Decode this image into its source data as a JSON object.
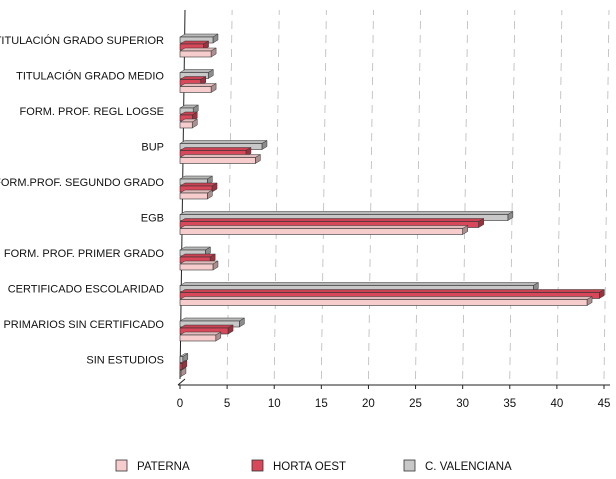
{
  "chart_data": {
    "type": "bar",
    "orientation": "horizontal",
    "categories": [
      "TITULACIÓN GRADO SUPERIOR",
      "TITULACIÓN GRADO MEDIO",
      "FORM. PROF. REGL LOGSE",
      "BUP",
      "FORM.PROF. SEGUNDO GRADO",
      "EGB",
      "FORM. PROF. PRIMER GRADO",
      "CERTIFICADO ESCOLARIDAD",
      "PRIMARIOS SIN CERTIFICADO",
      "SIN ESTUDIOS"
    ],
    "series": [
      {
        "name": "PATERNA",
        "color": "#f6cccc",
        "values": [
          3.3,
          3.3,
          1.3,
          8.0,
          2.9,
          30.0,
          3.5,
          43.2,
          3.8,
          0.1
        ]
      },
      {
        "name": "HORTA OEST",
        "color": "#d9485a",
        "values": [
          2.5,
          2.2,
          1.3,
          7.0,
          3.4,
          31.7,
          3.2,
          44.5,
          5.1,
          0.2
        ]
      },
      {
        "name": "C. VALENCIANA",
        "color": "#c8c8c8",
        "values": [
          3.5,
          3.0,
          1.4,
          8.7,
          2.9,
          34.8,
          2.7,
          37.5,
          6.3,
          0.3
        ]
      }
    ],
    "xticks": [
      "0",
      "5",
      "10",
      "15",
      "20",
      "25",
      "30",
      "35",
      "40",
      "45"
    ],
    "xlim": [
      0,
      45
    ],
    "grid": "vertical dashed",
    "legend_position": "bottom",
    "title": "",
    "xlabel": "",
    "ylabel": ""
  }
}
